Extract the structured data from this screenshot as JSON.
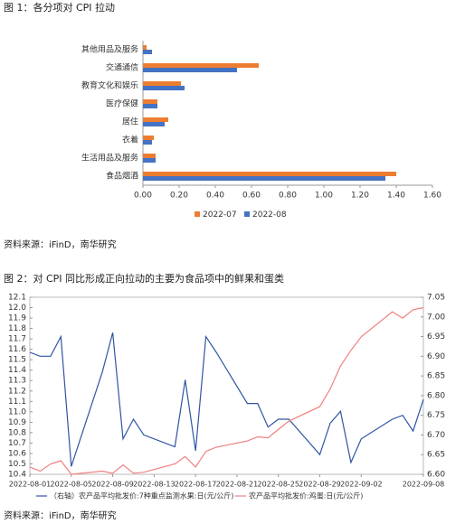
{
  "chart_data": [
    {
      "type": "hbar",
      "title": "图 1：各分项对 CPI 拉动",
      "source": "资料来源：iFinD，南华研究",
      "categories": [
        "其他用品及服务",
        "交通通信",
        "教育文化和娱乐",
        "医疗保健",
        "居住",
        "衣着",
        "生活用品及服务",
        "食品烟酒"
      ],
      "series": [
        {
          "name": "2022-07",
          "color": "#ED7D31",
          "values": [
            0.02,
            0.64,
            0.21,
            0.08,
            0.14,
            0.06,
            0.07,
            1.4
          ]
        },
        {
          "name": "2022-08",
          "color": "#4472C4",
          "values": [
            0.05,
            0.52,
            0.23,
            0.08,
            0.12,
            0.05,
            0.07,
            1.34
          ]
        }
      ],
      "xlim": [
        0,
        1.6
      ],
      "xticks": [
        {
          "value": 0,
          "label": "0.00"
        },
        {
          "value": 0.2,
          "label": "0.20"
        },
        {
          "value": 0.4,
          "label": "0.40"
        },
        {
          "value": 0.6,
          "label": "0.60"
        },
        {
          "value": 0.8,
          "label": "0.80"
        },
        {
          "value": 1.0,
          "label": "1.00"
        },
        {
          "value": 1.2,
          "label": "1.20"
        },
        {
          "value": 1.4,
          "label": "1.40"
        },
        {
          "value": 1.6,
          "label": "1.60"
        }
      ],
      "legend": "bottom"
    },
    {
      "type": "line",
      "title": "图 2：对 CPI 同比形成正向拉动的主要为食品项中的鲜果和蛋类",
      "source": "资料来源：iFinD，南华研究",
      "x": [
        "2022-08-01",
        "2022-08-02",
        "2022-08-03",
        "2022-08-04",
        "2022-08-05",
        "2022-08-08",
        "2022-08-09",
        "2022-08-10",
        "2022-08-11",
        "2022-08-12",
        "2022-08-15",
        "2022-08-16",
        "2022-08-17",
        "2022-08-18",
        "2022-08-19",
        "2022-08-22",
        "2022-08-23",
        "2022-08-24",
        "2022-08-25",
        "2022-08-26",
        "2022-08-29",
        "2022-08-30",
        "2022-08-31",
        "2022-09-01",
        "2022-09-02",
        "2022-09-05",
        "2022-09-06",
        "2022-09-07",
        "2022-09-08"
      ],
      "xticks": [
        "2022-08-01",
        "2022-08-05",
        "2022-08-09",
        "2022-08-13",
        "2022-08-17",
        "2022-08-21",
        "2022-08-25",
        "2022-08-29",
        "2022-09-02",
        "2022-09-08"
      ],
      "series": [
        {
          "name": "（右轴）农产品平均批发价:7种重点监测水果:日(元/公斤)",
          "color": "#2F55A4",
          "axis": "y2",
          "values": [
            6.91,
            6.9,
            6.9,
            6.95,
            6.62,
            6.86,
            6.96,
            6.69,
            6.74,
            6.7,
            6.67,
            6.84,
            6.66,
            6.95,
            6.91,
            6.78,
            6.78,
            6.72,
            6.74,
            6.74,
            6.65,
            6.73,
            6.76,
            6.63,
            6.69,
            6.74,
            6.75,
            6.71,
            6.79
          ]
        },
        {
          "name": "农产品平均批发价:鸡蛋:日(元/公斤)",
          "color": "#F08080",
          "values": [
            10.47,
            10.43,
            10.5,
            10.53,
            10.4,
            10.43,
            10.41,
            10.49,
            10.41,
            10.42,
            10.5,
            10.57,
            10.47,
            10.62,
            10.66,
            10.72,
            10.76,
            10.75,
            10.83,
            10.91,
            11.05,
            11.22,
            11.44,
            11.59,
            11.72,
            11.96,
            11.9,
            11.98,
            12.0
          ]
        }
      ],
      "ylim": [
        10.4,
        12.1
      ],
      "yticks": [
        10.4,
        10.5,
        10.6,
        10.7,
        10.8,
        10.9,
        {
          "value": 11.0,
          "label": "11.0"
        },
        11.1,
        11.2,
        11.3,
        11.4,
        11.5,
        11.6,
        11.7,
        11.8,
        11.9,
        {
          "value": 12.0,
          "label": "12.0"
        },
        12.1
      ],
      "y2lim": [
        6.6,
        7.05
      ],
      "y2ticks": [
        {
          "value": 6.6,
          "label": "6.60"
        },
        6.65,
        {
          "value": 6.7,
          "label": "6.70"
        },
        6.75,
        {
          "value": 6.8,
          "label": "6.80"
        },
        6.85,
        {
          "value": 6.9,
          "label": "6.90"
        },
        6.95,
        {
          "value": 7.0,
          "label": "7.00"
        },
        7.05
      ],
      "legend": "bottom"
    }
  ]
}
